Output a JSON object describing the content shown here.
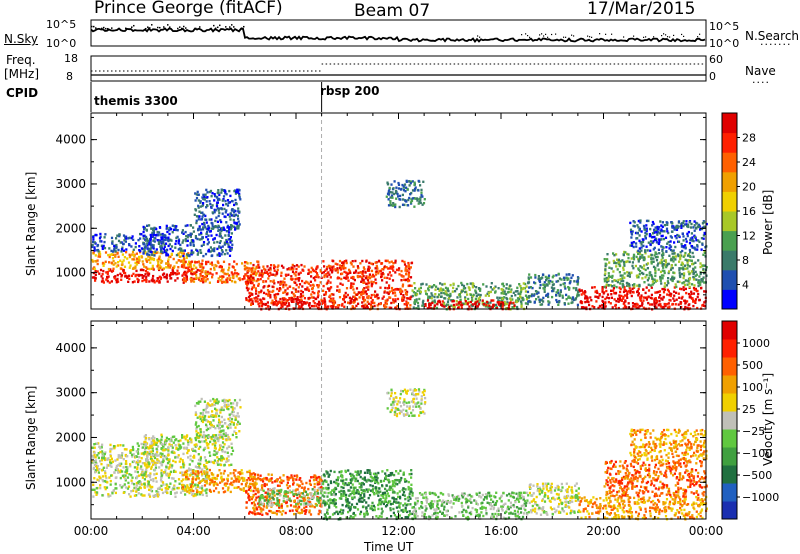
{
  "header": {
    "station": "Prince George (fitACF)",
    "beam": "Beam 07",
    "date": "17/Mar/2015"
  },
  "noise_panel": {
    "left_label": "N.Sky",
    "right_label": "N.Search",
    "left_ticks": [
      "10^5",
      "10^0"
    ],
    "right_ticks": [
      "10^5",
      "10^0"
    ]
  },
  "freq_panel": {
    "left_label": "Freq.",
    "left_unit": "[MHz]",
    "right_label": "Nave",
    "left_ticks": [
      "18",
      "8"
    ],
    "right_ticks": [
      "60",
      "0"
    ]
  },
  "cpid": {
    "label": "CPID",
    "modes": [
      {
        "name": "themis 3300",
        "start_hour": 0
      },
      {
        "name": "rbsp 200",
        "start_hour": 9
      }
    ]
  },
  "chart_data": [
    {
      "type": "heatmap",
      "name": "power",
      "ylabel": "Slant Range [km]",
      "xlabel": "",
      "x_ticks": [
        "00:00",
        "04:00",
        "08:00",
        "12:00",
        "16:00",
        "20:00",
        "00:00"
      ],
      "y_ticks": [
        1000,
        2000,
        3000,
        4000
      ],
      "xlim_hours": [
        0,
        24
      ],
      "ylim_km": [
        180,
        4600
      ],
      "colorbar": {
        "label": "Power [dB]",
        "ticks": [
          "4",
          "8",
          "12",
          "16",
          "20",
          "24",
          "28"
        ],
        "range": [
          0,
          32
        ],
        "colors": [
          "#0000ff",
          "#1f4fb0",
          "#3a7a6a",
          "#4aa050",
          "#a8c828",
          "#f0d000",
          "#f0a000",
          "#ff6000",
          "#ff2000",
          "#e00000"
        ]
      },
      "regions": [
        {
          "t": [
            0.0,
            4.5
          ],
          "r": [
            800,
            1100
          ],
          "level": 9
        },
        {
          "t": [
            0.0,
            4.0
          ],
          "r": [
            1100,
            1500
          ],
          "level": 6
        },
        {
          "t": [
            0.0,
            3.0
          ],
          "r": [
            1500,
            1900
          ],
          "level": 1
        },
        {
          "t": [
            2.0,
            5.5
          ],
          "r": [
            1400,
            2100
          ],
          "level": 1
        },
        {
          "t": [
            4.0,
            5.8
          ],
          "r": [
            2000,
            2900
          ],
          "level": 1
        },
        {
          "t": [
            3.5,
            6.5
          ],
          "r": [
            800,
            1300
          ],
          "level": 7
        },
        {
          "t": [
            6.0,
            9.0
          ],
          "r": [
            300,
            1200
          ],
          "level": 8
        },
        {
          "t": [
            6.5,
            9.5
          ],
          "r": [
            200,
            450
          ],
          "level": 9
        },
        {
          "t": [
            9.0,
            12.5
          ],
          "r": [
            200,
            1300
          ],
          "level": 8
        },
        {
          "t": [
            11.5,
            13.0
          ],
          "r": [
            2500,
            3100
          ],
          "level": 2
        },
        {
          "t": [
            12.5,
            17.0
          ],
          "r": [
            200,
            800
          ],
          "level": 3
        },
        {
          "t": [
            13.0,
            16.5
          ],
          "r": [
            200,
            400
          ],
          "level": 9
        },
        {
          "t": [
            17.0,
            19.0
          ],
          "r": [
            300,
            1000
          ],
          "level": 2
        },
        {
          "t": [
            19.0,
            24.0
          ],
          "r": [
            200,
            700
          ],
          "level": 9
        },
        {
          "t": [
            20.0,
            24.0
          ],
          "r": [
            700,
            1500
          ],
          "level": 3
        },
        {
          "t": [
            21.0,
            24.0
          ],
          "r": [
            1500,
            2200
          ],
          "level": 1
        }
      ]
    },
    {
      "type": "heatmap",
      "name": "velocity",
      "ylabel": "Slant Range [km]",
      "xlabel": "Time UT",
      "x_ticks": [
        "00:00",
        "04:00",
        "08:00",
        "12:00",
        "16:00",
        "20:00",
        "00:00"
      ],
      "y_ticks": [
        1000,
        2000,
        3000,
        4000
      ],
      "xlim_hours": [
        0,
        24
      ],
      "ylim_km": [
        180,
        4600
      ],
      "colorbar": {
        "label": "Velocity [m s⁻¹]",
        "ticks": [
          "1000",
          "500",
          "100",
          "25",
          "−25",
          "−100",
          "−500",
          "−1000"
        ],
        "colors": [
          "#1a2fb0",
          "#2060c0",
          "#207040",
          "#40a040",
          "#60c840",
          "#c0c0b8",
          "#f0d000",
          "#f0a000",
          "#ff6000",
          "#ff2000",
          "#e00000"
        ]
      },
      "regions": [
        {
          "t": [
            0.0,
            4.5
          ],
          "r": [
            700,
            1400
          ],
          "level": 5
        },
        {
          "t": [
            0.0,
            3.0
          ],
          "r": [
            1400,
            1900
          ],
          "level": 5
        },
        {
          "t": [
            2.0,
            5.5
          ],
          "r": [
            1400,
            2100
          ],
          "level": 5
        },
        {
          "t": [
            4.0,
            5.8
          ],
          "r": [
            2000,
            2900
          ],
          "level": 5
        },
        {
          "t": [
            3.5,
            6.5
          ],
          "r": [
            800,
            1300
          ],
          "level": 7
        },
        {
          "t": [
            6.0,
            9.0
          ],
          "r": [
            300,
            1200
          ],
          "level": 8
        },
        {
          "t": [
            6.5,
            9.5
          ],
          "r": [
            500,
            900
          ],
          "level": 4
        },
        {
          "t": [
            9.0,
            12.5
          ],
          "r": [
            200,
            1300
          ],
          "level": 3
        },
        {
          "t": [
            11.5,
            13.0
          ],
          "r": [
            2500,
            3100
          ],
          "level": 5
        },
        {
          "t": [
            12.5,
            17.0
          ],
          "r": [
            200,
            800
          ],
          "level": 4
        },
        {
          "t": [
            17.0,
            19.0
          ],
          "r": [
            300,
            1000
          ],
          "level": 5
        },
        {
          "t": [
            19.0,
            24.0
          ],
          "r": [
            200,
            700
          ],
          "level": 7
        },
        {
          "t": [
            20.0,
            24.0
          ],
          "r": [
            700,
            1500
          ],
          "level": 8
        },
        {
          "t": [
            21.0,
            24.0
          ],
          "r": [
            1500,
            2200
          ],
          "level": 7
        }
      ]
    }
  ]
}
